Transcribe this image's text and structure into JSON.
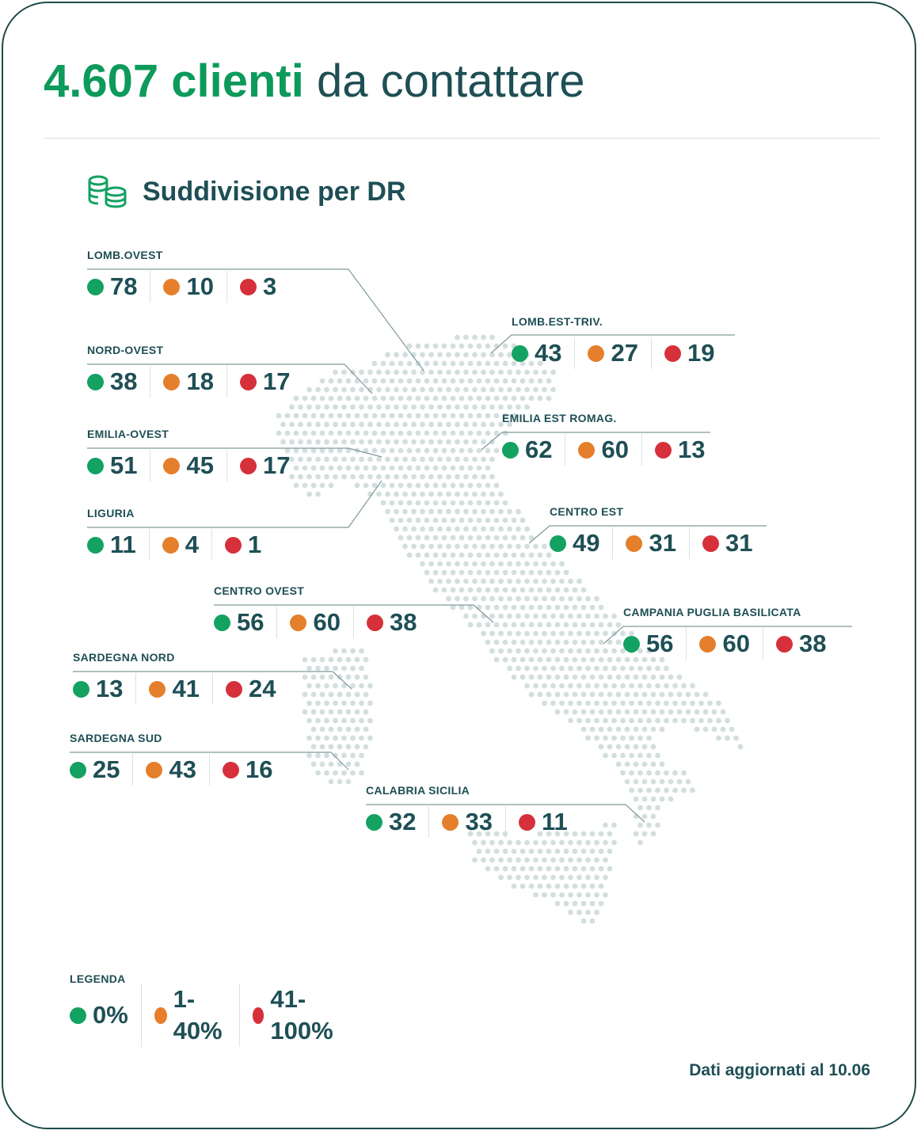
{
  "header": {
    "highlight": "4.607 clienti",
    "rest": "da contattare"
  },
  "section": {
    "title": "Suddivisione per DR",
    "icon": "coins-stack-icon"
  },
  "colors": {
    "green": "#13a261",
    "orange": "#e57f2b",
    "red": "#d6303a",
    "text": "#1e4f55",
    "accent": "#0d9a5b",
    "map_dot": "#d3dede"
  },
  "regions": [
    {
      "name": "LOMB.OVEST",
      "green": "78",
      "orange": "10",
      "red": "3"
    },
    {
      "name": "NORD-OVEST",
      "green": "38",
      "orange": "18",
      "red": "17"
    },
    {
      "name": "EMILIA-OVEST",
      "green": "51",
      "orange": "45",
      "red": "17"
    },
    {
      "name": "LIGURIA",
      "green": "11",
      "orange": "4",
      "red": "1"
    },
    {
      "name": "CENTRO OVEST",
      "green": "56",
      "orange": "60",
      "red": "38"
    },
    {
      "name": "SARDEGNA NORD",
      "green": "13",
      "orange": "41",
      "red": "24"
    },
    {
      "name": "SARDEGNA SUD",
      "green": "25",
      "orange": "43",
      "red": "16"
    },
    {
      "name": "LOMB.EST-TRIV.",
      "green": "43",
      "orange": "27",
      "red": "19"
    },
    {
      "name": "EMILIA EST ROMAG.",
      "green": "62",
      "orange": "60",
      "red": "13"
    },
    {
      "name": "CENTRO EST",
      "green": "49",
      "orange": "31",
      "red": "31"
    },
    {
      "name": "CAMPANIA PUGLIA BASILICATA",
      "green": "56",
      "orange": "60",
      "red": "38"
    },
    {
      "name": "CALABRIA SICILIA",
      "green": "32",
      "orange": "33",
      "red": "11"
    }
  ],
  "legend": {
    "title": "LEGENDA",
    "green": "0%",
    "orange": "1-40%",
    "red": "41-100%"
  },
  "footer": "Dati aggiornati al 10.06"
}
